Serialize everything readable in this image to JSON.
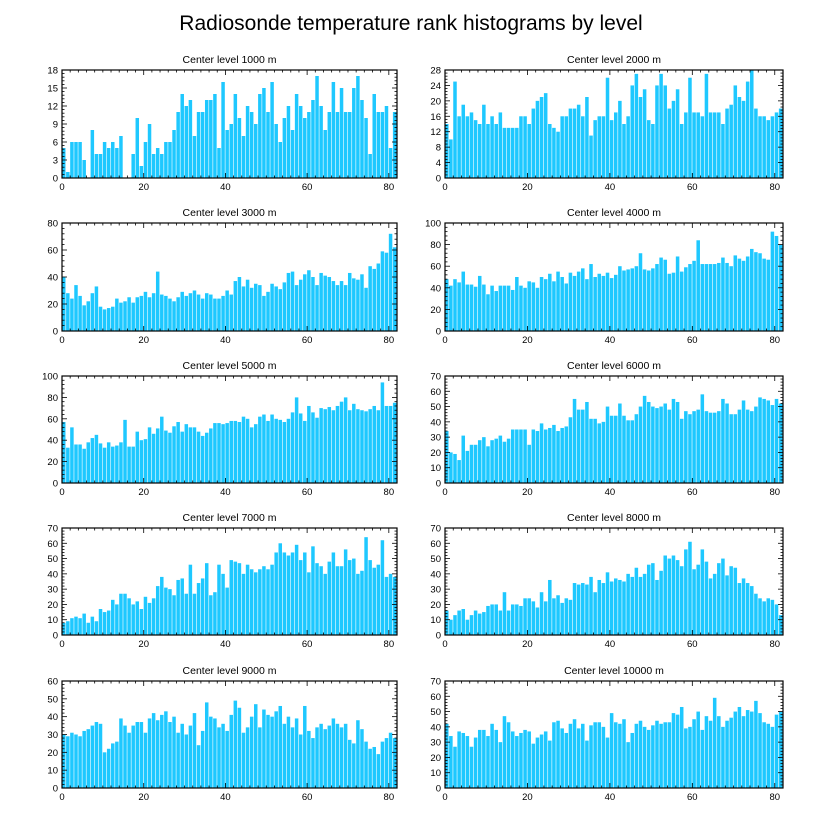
{
  "figure_title": "Radiosonde temperature rank histograms by level",
  "chart_data": [
    {
      "type": "bar",
      "title": "Center level 1000 m",
      "xlim": [
        0,
        82
      ],
      "ylim": [
        0,
        18
      ],
      "xticks": [
        0,
        20,
        40,
        60,
        80
      ],
      "yticks": [
        0,
        3,
        6,
        9,
        12,
        15,
        18
      ],
      "values": [
        5,
        1,
        6,
        6,
        6,
        3,
        0,
        8,
        4,
        4,
        6,
        5,
        6,
        5,
        7,
        0,
        0,
        4,
        10,
        2,
        6,
        9,
        4,
        5,
        4,
        6,
        6,
        8,
        11,
        14,
        12,
        13,
        7,
        11,
        11,
        13,
        13,
        14,
        5,
        16,
        8,
        9,
        14,
        10,
        7,
        12,
        11,
        9,
        14,
        15,
        11,
        16,
        9,
        6,
        10,
        12,
        8,
        14,
        12,
        10,
        11,
        13,
        17,
        12,
        8,
        11,
        16,
        11,
        15,
        11,
        11,
        15,
        17,
        13,
        10,
        4,
        14,
        11,
        11,
        12,
        5,
        11
      ]
    },
    {
      "type": "bar",
      "title": "Center level 2000 m",
      "xlim": [
        0,
        82
      ],
      "ylim": [
        0,
        28
      ],
      "xticks": [
        0,
        20,
        40,
        60,
        80
      ],
      "yticks": [
        0,
        4,
        8,
        12,
        16,
        20,
        24,
        28
      ],
      "values": [
        14,
        10,
        25,
        16,
        19,
        16,
        17,
        15,
        14,
        19,
        14,
        16,
        14,
        17,
        13,
        13,
        13,
        13,
        16,
        16,
        14,
        18,
        20,
        21,
        22,
        14,
        13,
        12,
        16,
        16,
        18,
        18,
        19,
        16,
        21,
        11,
        15,
        16,
        16,
        26,
        15,
        17,
        20,
        14,
        16,
        24,
        27,
        21,
        23,
        15,
        14,
        24,
        27,
        24,
        18,
        20,
        23,
        14,
        17,
        26,
        17,
        17,
        16,
        27,
        17,
        17,
        17,
        14,
        18,
        19,
        24,
        21,
        20,
        25,
        28,
        18,
        16,
        16,
        15,
        16,
        17,
        18
      ]
    },
    {
      "type": "bar",
      "title": "Center level 3000 m",
      "xlim": [
        0,
        82
      ],
      "ylim": [
        0,
        80
      ],
      "xticks": [
        0,
        20,
        40,
        60,
        80
      ],
      "yticks": [
        0,
        20,
        40,
        60,
        80
      ],
      "values": [
        40,
        28,
        24,
        34,
        26,
        19,
        22,
        28,
        33,
        18,
        16,
        17,
        18,
        24,
        21,
        22,
        25,
        21,
        25,
        26,
        29,
        25,
        28,
        44,
        27,
        26,
        24,
        22,
        25,
        29,
        26,
        28,
        30,
        27,
        24,
        28,
        27,
        24,
        24,
        26,
        30,
        27,
        37,
        40,
        33,
        38,
        32,
        35,
        34,
        26,
        29,
        35,
        33,
        31,
        36,
        43,
        44,
        34,
        38,
        42,
        45,
        40,
        34,
        43,
        41,
        40,
        37,
        34,
        37,
        34,
        43,
        39,
        38,
        42,
        32,
        48,
        46,
        50,
        59,
        58,
        72,
        62
      ]
    },
    {
      "type": "bar",
      "title": "Center level 4000 m",
      "xlim": [
        0,
        82
      ],
      "ylim": [
        0,
        100
      ],
      "xticks": [
        0,
        20,
        40,
        60,
        80
      ],
      "yticks": [
        0,
        20,
        40,
        60,
        80,
        100
      ],
      "values": [
        48,
        42,
        48,
        45,
        55,
        43,
        43,
        41,
        51,
        43,
        34,
        42,
        37,
        42,
        42,
        42,
        38,
        50,
        42,
        40,
        46,
        45,
        40,
        50,
        48,
        53,
        46,
        55,
        50,
        44,
        54,
        51,
        55,
        58,
        48,
        62,
        50,
        53,
        51,
        54,
        49,
        52,
        60,
        56,
        57,
        58,
        60,
        72,
        57,
        56,
        58,
        62,
        68,
        66,
        53,
        54,
        69,
        55,
        59,
        62,
        65,
        84,
        62,
        62,
        62,
        62,
        63,
        68,
        63,
        60,
        70,
        67,
        65,
        69,
        76,
        73,
        72,
        67,
        66,
        92,
        88,
        80
      ]
    },
    {
      "type": "bar",
      "title": "Center level 5000 m",
      "xlim": [
        0,
        82
      ],
      "ylim": [
        0,
        100
      ],
      "xticks": [
        0,
        20,
        40,
        60,
        80
      ],
      "yticks": [
        0,
        20,
        40,
        60,
        80,
        100
      ],
      "values": [
        57,
        33,
        52,
        36,
        36,
        32,
        38,
        42,
        45,
        37,
        33,
        38,
        34,
        35,
        38,
        59,
        34,
        34,
        48,
        40,
        41,
        52,
        46,
        51,
        62,
        49,
        47,
        53,
        57,
        48,
        55,
        52,
        52,
        48,
        44,
        47,
        51,
        56,
        56,
        55,
        56,
        58,
        58,
        57,
        62,
        60,
        52,
        55,
        62,
        64,
        58,
        64,
        60,
        59,
        57,
        60,
        66,
        80,
        65,
        58,
        72,
        66,
        61,
        70,
        69,
        71,
        68,
        72,
        76,
        80,
        68,
        74,
        69,
        68,
        67,
        69,
        72,
        68,
        94,
        72,
        72,
        75
      ]
    },
    {
      "type": "bar",
      "title": "Center level 6000 m",
      "xlim": [
        0,
        82
      ],
      "ylim": [
        0,
        70
      ],
      "xticks": [
        0,
        20,
        40,
        60,
        80
      ],
      "yticks": [
        0,
        10,
        20,
        30,
        40,
        50,
        60,
        70
      ],
      "values": [
        34,
        20,
        19,
        15,
        31,
        21,
        25,
        25,
        28,
        30,
        24,
        28,
        29,
        31,
        27,
        29,
        35,
        35,
        35,
        35,
        25,
        35,
        34,
        39,
        35,
        36,
        38,
        34,
        36,
        37,
        43,
        55,
        48,
        48,
        53,
        42,
        42,
        39,
        40,
        50,
        44,
        44,
        52,
        44,
        41,
        41,
        45,
        50,
        57,
        53,
        50,
        49,
        50,
        52,
        48,
        55,
        53,
        42,
        47,
        45,
        47,
        48,
        58,
        47,
        46,
        46,
        47,
        55,
        52,
        45,
        45,
        48,
        54,
        48,
        47,
        50,
        56,
        55,
        54,
        51,
        55,
        52
      ]
    },
    {
      "type": "bar",
      "title": "Center level 7000 m",
      "xlim": [
        0,
        82
      ],
      "ylim": [
        0,
        70
      ],
      "xticks": [
        0,
        20,
        40,
        60,
        80
      ],
      "yticks": [
        0,
        10,
        20,
        30,
        40,
        50,
        60,
        70
      ],
      "values": [
        8,
        9,
        11,
        12,
        11,
        14,
        8,
        12,
        9,
        17,
        15,
        16,
        23,
        20,
        27,
        27,
        24,
        20,
        22,
        17,
        25,
        21,
        24,
        32,
        38,
        31,
        30,
        26,
        36,
        37,
        27,
        46,
        27,
        34,
        37,
        47,
        26,
        28,
        46,
        40,
        31,
        49,
        48,
        47,
        40,
        46,
        43,
        41,
        43,
        45,
        43,
        46,
        54,
        60,
        54,
        52,
        54,
        59,
        49,
        54,
        41,
        58,
        47,
        45,
        40,
        48,
        54,
        45,
        45,
        56,
        49,
        50,
        40,
        42,
        64,
        49,
        44,
        46,
        62,
        38,
        40,
        38
      ]
    },
    {
      "type": "bar",
      "title": "Center level 8000 m",
      "xlim": [
        0,
        82
      ],
      "ylim": [
        0,
        70
      ],
      "xticks": [
        0,
        20,
        40,
        60,
        80
      ],
      "yticks": [
        0,
        10,
        20,
        30,
        40,
        50,
        60,
        70
      ],
      "values": [
        16,
        10,
        13,
        16,
        17,
        10,
        13,
        16,
        14,
        15,
        19,
        20,
        20,
        16,
        28,
        16,
        20,
        20,
        19,
        24,
        24,
        22,
        18,
        28,
        22,
        36,
        24,
        26,
        21,
        24,
        23,
        34,
        33,
        34,
        33,
        38,
        28,
        36,
        34,
        41,
        35,
        37,
        36,
        35,
        40,
        38,
        44,
        38,
        40,
        46,
        47,
        36,
        42,
        52,
        50,
        52,
        49,
        45,
        56,
        61,
        43,
        46,
        56,
        48,
        37,
        40,
        47,
        50,
        39,
        45,
        44,
        34,
        37,
        34,
        32,
        27,
        24,
        22,
        24,
        23,
        20,
        13
      ]
    },
    {
      "type": "bar",
      "title": "Center level 9000 m",
      "xlim": [
        0,
        82
      ],
      "ylim": [
        0,
        60
      ],
      "xticks": [
        0,
        20,
        40,
        60,
        80
      ],
      "yticks": [
        0,
        10,
        20,
        30,
        40,
        50,
        60
      ],
      "values": [
        30,
        29,
        31,
        30,
        29,
        32,
        33,
        35,
        37,
        36,
        20,
        22,
        25,
        26,
        39,
        35,
        31,
        35,
        37,
        37,
        31,
        39,
        42,
        38,
        41,
        43,
        37,
        40,
        31,
        36,
        30,
        35,
        42,
        24,
        32,
        48,
        40,
        39,
        34,
        36,
        32,
        41,
        49,
        45,
        31,
        34,
        40,
        47,
        34,
        44,
        41,
        40,
        43,
        46,
        36,
        40,
        34,
        39,
        30,
        46,
        32,
        28,
        34,
        36,
        33,
        35,
        39,
        36,
        34,
        36,
        27,
        25,
        38,
        33,
        26,
        22,
        23,
        19,
        26,
        28,
        31,
        28
      ]
    },
    {
      "type": "bar",
      "title": "Center level 10000 m",
      "xlim": [
        0,
        82
      ],
      "ylim": [
        0,
        70
      ],
      "xticks": [
        0,
        20,
        40,
        60,
        80
      ],
      "yticks": [
        0,
        10,
        20,
        30,
        40,
        50,
        60,
        70
      ],
      "values": [
        42,
        34,
        27,
        37,
        36,
        34,
        27,
        33,
        38,
        38,
        34,
        42,
        38,
        30,
        47,
        43,
        37,
        34,
        36,
        38,
        37,
        29,
        33,
        35,
        37,
        31,
        43,
        44,
        39,
        36,
        42,
        45,
        39,
        42,
        31,
        41,
        43,
        43,
        40,
        33,
        49,
        43,
        42,
        45,
        30,
        36,
        42,
        44,
        40,
        38,
        41,
        44,
        42,
        43,
        43,
        49,
        48,
        53,
        39,
        40,
        45,
        50,
        38,
        47,
        44,
        59,
        47,
        40,
        44,
        46,
        50,
        53,
        47,
        51,
        50,
        57,
        49,
        43,
        42,
        40,
        48,
        50
      ]
    }
  ]
}
